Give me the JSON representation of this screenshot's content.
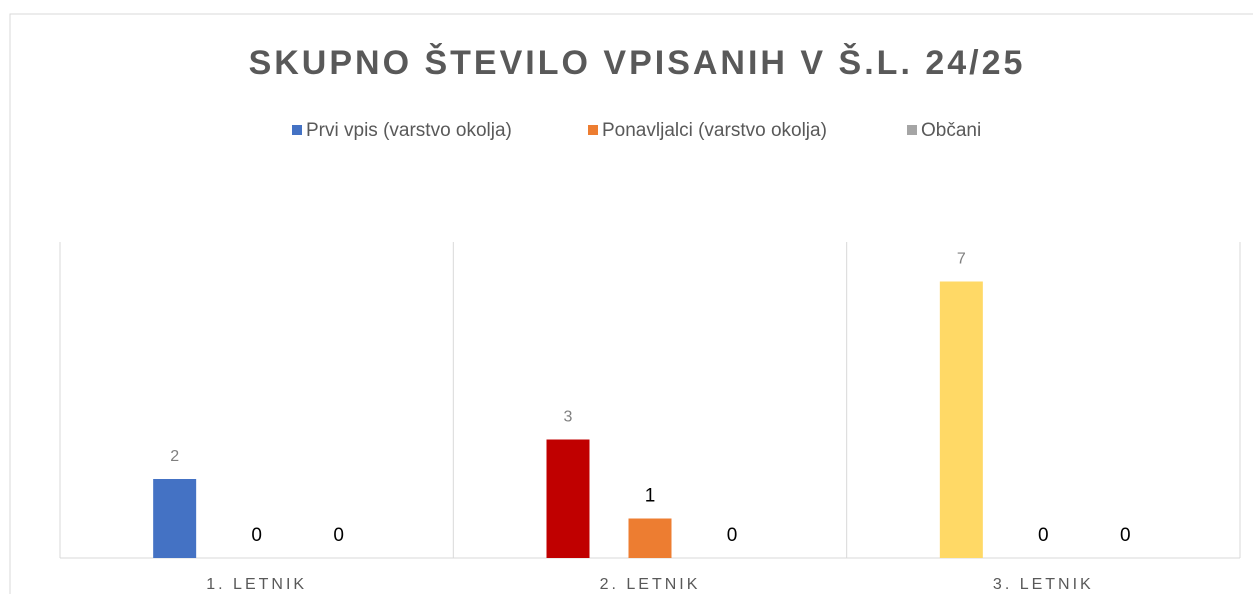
{
  "chart_data": {
    "type": "bar",
    "title": "SKUPNO ŠTEVILO VPISANIH V Š.L. 24/25",
    "categories": [
      "1. LETNIK",
      "2. LETNIK",
      "3. LETNIK"
    ],
    "series": [
      {
        "name": "Prvi vpis (varstvo okolja)",
        "color": "#4472c4",
        "point_colors": [
          "#4472c4",
          "#c00000",
          "#ffd966"
        ],
        "values": [
          2,
          3,
          7
        ]
      },
      {
        "name": "Ponavljalci (varstvo okolja)",
        "color": "#ed7d31",
        "values": [
          0,
          1,
          0
        ]
      },
      {
        "name": "Občani",
        "color": "#a5a5a5",
        "values": [
          0,
          0,
          0
        ]
      }
    ],
    "ylim": [
      0,
      8
    ],
    "legend": "top"
  }
}
